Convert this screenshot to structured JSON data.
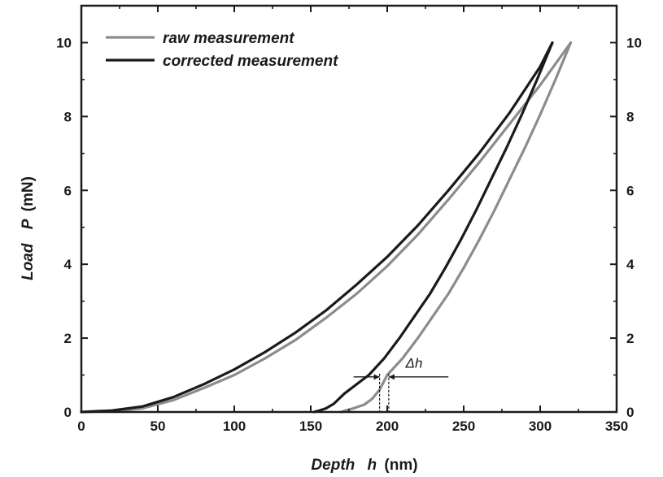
{
  "chart_data": {
    "type": "line",
    "xlabel_italic": "Depth",
    "xlabel_var": "h",
    "xlabel_unit": "(nm)",
    "ylabel_italic": "Load",
    "ylabel_var": "P",
    "ylabel_unit": "(mN)",
    "xlim": [
      0,
      350
    ],
    "ylim": [
      0,
      11
    ],
    "xticks": [
      0,
      50,
      100,
      150,
      200,
      250,
      300,
      350
    ],
    "yticks": [
      0,
      2,
      4,
      6,
      8,
      10
    ],
    "grid": false,
    "legend_position": "top-left",
    "series": [
      {
        "name": "raw measurement",
        "color": "#8c8c8c",
        "loading": [
          [
            0,
            0
          ],
          [
            20,
            0.02
          ],
          [
            40,
            0.1
          ],
          [
            60,
            0.32
          ],
          [
            80,
            0.65
          ],
          [
            100,
            1.0
          ],
          [
            120,
            1.45
          ],
          [
            140,
            1.95
          ],
          [
            160,
            2.55
          ],
          [
            180,
            3.2
          ],
          [
            200,
            3.95
          ],
          [
            220,
            4.8
          ],
          [
            240,
            5.75
          ],
          [
            260,
            6.75
          ],
          [
            280,
            7.8
          ],
          [
            300,
            8.85
          ],
          [
            320,
            10.0
          ]
        ],
        "unloading": [
          [
            320,
            10.0
          ],
          [
            310,
            9.0
          ],
          [
            300,
            8.05
          ],
          [
            290,
            7.15
          ],
          [
            280,
            6.3
          ],
          [
            270,
            5.45
          ],
          [
            260,
            4.65
          ],
          [
            250,
            3.9
          ],
          [
            240,
            3.2
          ],
          [
            230,
            2.6
          ],
          [
            220,
            2.0
          ],
          [
            210,
            1.45
          ],
          [
            200,
            1.0
          ],
          [
            195,
            0.6
          ],
          [
            190,
            0.35
          ],
          [
            185,
            0.2
          ],
          [
            178,
            0.1
          ],
          [
            172,
            0.03
          ],
          [
            170,
            0.0
          ]
        ]
      },
      {
        "name": "corrected measurement",
        "color": "#1a1a1a",
        "loading": [
          [
            0,
            0
          ],
          [
            20,
            0.04
          ],
          [
            40,
            0.15
          ],
          [
            60,
            0.4
          ],
          [
            80,
            0.75
          ],
          [
            100,
            1.15
          ],
          [
            120,
            1.62
          ],
          [
            140,
            2.15
          ],
          [
            160,
            2.75
          ],
          [
            180,
            3.45
          ],
          [
            200,
            4.2
          ],
          [
            220,
            5.05
          ],
          [
            240,
            6.0
          ],
          [
            260,
            7.0
          ],
          [
            280,
            8.1
          ],
          [
            300,
            9.35
          ],
          [
            308,
            10.0
          ]
        ],
        "unloading": [
          [
            308,
            10.0
          ],
          [
            298,
            9.0
          ],
          [
            288,
            8.05
          ],
          [
            278,
            7.15
          ],
          [
            268,
            6.3
          ],
          [
            258,
            5.45
          ],
          [
            248,
            4.65
          ],
          [
            238,
            3.9
          ],
          [
            228,
            3.2
          ],
          [
            218,
            2.6
          ],
          [
            208,
            2.0
          ],
          [
            198,
            1.45
          ],
          [
            188,
            1.0
          ],
          [
            180,
            0.75
          ],
          [
            172,
            0.5
          ],
          [
            165,
            0.22
          ],
          [
            160,
            0.1
          ],
          [
            155,
            0.03
          ],
          [
            152,
            0.0
          ]
        ]
      }
    ],
    "annotation": {
      "label": "Δh",
      "y": 0.95,
      "x_left": 195,
      "x_right": 201,
      "arrow_left_from": 178,
      "arrow_right_to": 240,
      "label_x": 212,
      "label_y": 1.2
    }
  }
}
